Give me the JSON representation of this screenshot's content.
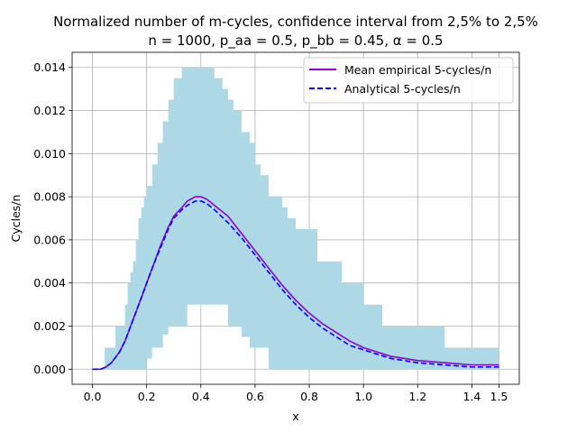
{
  "chart_data": {
    "type": "line",
    "title": "Normalized number of m-cycles, confidence interval from 2,5% to 2,5%",
    "subtitle": "n = 1000, p_aa = 0.5, p_bb = 0.45, α = 0.5",
    "xlabel": "x",
    "ylabel": "Cycles/n",
    "xlim": [
      -0.075,
      1.575
    ],
    "ylim": [
      -0.0007,
      0.0147
    ],
    "x_ticks": [
      0.0,
      0.2,
      0.4,
      0.6,
      0.8,
      1.0,
      1.2,
      1.4,
      1.5
    ],
    "x_tick_labels": [
      "0.0",
      "0.2",
      "0.4",
      "0.6",
      "0.8",
      "1.0",
      "1.2",
      "1.4",
      "1.5"
    ],
    "y_ticks": [
      0.0,
      0.002,
      0.004,
      0.006,
      0.008,
      0.01,
      0.012,
      0.014
    ],
    "y_tick_labels": [
      "0.000",
      "0.002",
      "0.004",
      "0.006",
      "0.008",
      "0.010",
      "0.012",
      "0.014"
    ],
    "grid": true,
    "legend_position": "top-right",
    "colors": {
      "empirical": "#9400d3",
      "analytical": "#0000ff",
      "band": "#add8e6",
      "grid": "#b0b0b0"
    },
    "confidence_band": {
      "x": [
        0.0,
        0.04,
        0.045,
        0.08,
        0.085,
        0.12,
        0.13,
        0.14,
        0.15,
        0.16,
        0.17,
        0.18,
        0.19,
        0.2,
        0.22,
        0.24,
        0.26,
        0.28,
        0.3,
        0.33,
        0.35,
        0.38,
        0.42,
        0.45,
        0.48,
        0.5,
        0.52,
        0.55,
        0.58,
        0.6,
        0.62,
        0.65,
        0.7,
        0.72,
        0.75,
        0.8,
        0.83,
        0.9,
        0.92,
        1.0,
        1.07,
        1.2,
        1.28,
        1.3,
        1.5
      ],
      "lower": [
        0.0,
        0.0,
        0.0,
        0.0,
        0.0,
        0.0,
        0.0,
        0.0,
        0.0,
        0.0,
        0.0,
        0.0,
        0.0,
        0.0,
        0.0005,
        0.001,
        0.001,
        0.0016,
        0.002,
        0.002,
        0.002,
        0.003,
        0.003,
        0.003,
        0.003,
        0.003,
        0.002,
        0.002,
        0.0015,
        0.001,
        0.001,
        0.001,
        0.0,
        0.0,
        0.0,
        0.0,
        0.0,
        0.0,
        0.0,
        0.0,
        0.0,
        0.0,
        0.0,
        0.0,
        0.0
      ],
      "upper": [
        0.0,
        0.0,
        0.001,
        0.001,
        0.002,
        0.003,
        0.004,
        0.0045,
        0.005,
        0.006,
        0.007,
        0.0075,
        0.008,
        0.0085,
        0.0095,
        0.0105,
        0.0115,
        0.0125,
        0.0135,
        0.014,
        0.014,
        0.014,
        0.014,
        0.0135,
        0.013,
        0.0125,
        0.012,
        0.011,
        0.0105,
        0.0095,
        0.009,
        0.008,
        0.0075,
        0.007,
        0.0065,
        0.0065,
        0.005,
        0.005,
        0.004,
        0.003,
        0.002,
        0.002,
        0.002,
        0.001,
        0.001
      ]
    },
    "series": [
      {
        "name": "Mean empirical 5-cycles/n",
        "style": "solid",
        "x": [
          0.0,
          0.03,
          0.05,
          0.07,
          0.1,
          0.12,
          0.15,
          0.18,
          0.2,
          0.23,
          0.25,
          0.28,
          0.3,
          0.33,
          0.35,
          0.38,
          0.4,
          0.42,
          0.45,
          0.5,
          0.55,
          0.6,
          0.65,
          0.7,
          0.75,
          0.8,
          0.85,
          0.9,
          0.95,
          1.0,
          1.05,
          1.1,
          1.15,
          1.2,
          1.3,
          1.4,
          1.5
        ],
        "y": [
          0.0,
          0.0,
          0.0001,
          0.0003,
          0.0008,
          0.0013,
          0.0023,
          0.0033,
          0.004,
          0.005,
          0.0057,
          0.0066,
          0.0071,
          0.0075,
          0.0078,
          0.008,
          0.008,
          0.0079,
          0.0076,
          0.0071,
          0.0063,
          0.0055,
          0.0047,
          0.0039,
          0.0032,
          0.0026,
          0.0021,
          0.0017,
          0.0013,
          0.001,
          0.0008,
          0.0006,
          0.0005,
          0.0004,
          0.0003,
          0.0002,
          0.0002
        ]
      },
      {
        "name": "Analytical 5-cycles/n",
        "style": "dashed",
        "x": [
          0.0,
          0.03,
          0.05,
          0.07,
          0.1,
          0.12,
          0.15,
          0.18,
          0.2,
          0.23,
          0.25,
          0.28,
          0.3,
          0.33,
          0.35,
          0.38,
          0.4,
          0.42,
          0.45,
          0.5,
          0.55,
          0.6,
          0.65,
          0.7,
          0.75,
          0.8,
          0.85,
          0.9,
          0.95,
          1.0,
          1.05,
          1.1,
          1.15,
          1.2,
          1.3,
          1.4,
          1.5
        ],
        "y": [
          0.0,
          0.0,
          0.0001,
          0.0003,
          0.0008,
          0.0013,
          0.0023,
          0.0033,
          0.004,
          0.005,
          0.0056,
          0.0065,
          0.007,
          0.0074,
          0.0076,
          0.0078,
          0.0078,
          0.0077,
          0.0074,
          0.0068,
          0.0061,
          0.0053,
          0.0045,
          0.0037,
          0.003,
          0.0024,
          0.0019,
          0.0015,
          0.0011,
          0.0009,
          0.0007,
          0.0005,
          0.0004,
          0.0003,
          0.0002,
          0.0001,
          0.0001
        ]
      }
    ]
  }
}
